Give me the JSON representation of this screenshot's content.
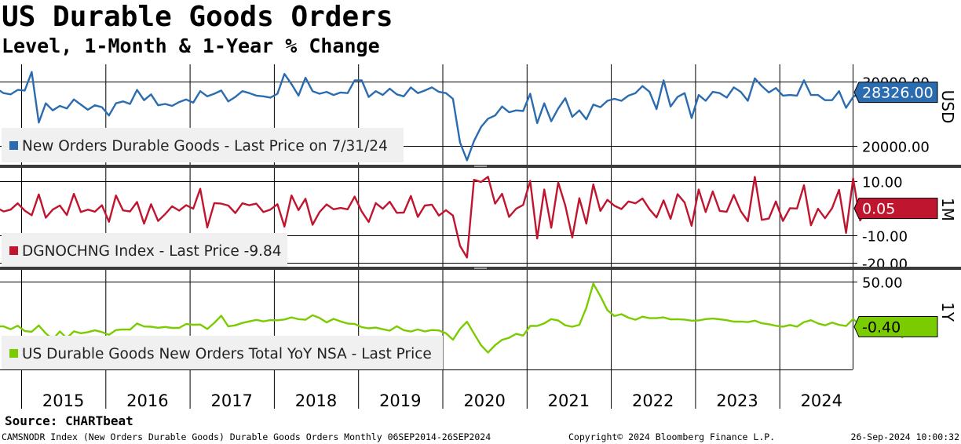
{
  "title": "US Durable Goods Orders",
  "subtitle": "Level, 1-Month & 1-Year % Change",
  "source": "Source: CHARTbeat",
  "footer": {
    "left": "CAMSNODR Index (New Orders Durable Goods) Durable Goods Orders  Monthly 06SEP2014-26SEP2024",
    "middle": "Copyright© 2024 Bloomberg Finance L.P.",
    "right": "26-Sep-2024 10:00:32"
  },
  "colors": {
    "level": "#2b6cb0",
    "mom": "#c0152f",
    "yoy": "#7acc00",
    "legend_bg": "#f0f0f0"
  },
  "chart_data": [
    {
      "type": "line",
      "panel": "level",
      "legend": "New Orders Durable Goods - Last Price on 7/31/24",
      "axis_side_label": "USD",
      "ticks": [
        20000,
        30000
      ],
      "tick_labels": [
        "20000.00",
        "30000.00"
      ],
      "last_value_label": "28326.00",
      "last_value": 28326,
      "ylim": [
        17000,
        32700
      ],
      "start": "2014-09",
      "values": [
        28900,
        28200,
        28000,
        28700,
        28600,
        31500,
        23600,
        26600,
        25500,
        26200,
        25800,
        27200,
        26400,
        25600,
        26300,
        26000,
        24700,
        26600,
        26900,
        26500,
        28700,
        27100,
        28000,
        26300,
        26500,
        26200,
        26800,
        27200,
        26700,
        28500,
        27700,
        28100,
        28600,
        26900,
        27600,
        28500,
        28200,
        27800,
        27700,
        27500,
        28100,
        31200,
        29600,
        27800,
        30600,
        28500,
        28100,
        28400,
        27900,
        28300,
        28200,
        30200,
        30200,
        27600,
        28500,
        27900,
        28900,
        28000,
        27700,
        29100,
        28200,
        28600,
        29100,
        28400,
        28200,
        27300,
        20500,
        17700,
        20700,
        22900,
        24200,
        24700,
        26100,
        25200,
        25500,
        25400,
        28100,
        23500,
        26600,
        23800,
        25800,
        27400,
        24500,
        25500,
        24100,
        26400,
        26000,
        27000,
        27300,
        27000,
        27800,
        28200,
        29300,
        28400,
        25700,
        30200,
        26100,
        27600,
        28200,
        24300,
        27900,
        27000,
        28400,
        28200,
        27500,
        29100,
        28400,
        27000,
        30500,
        29300,
        28300,
        29000,
        27800,
        27900,
        27800,
        30200,
        27900,
        27900,
        27100,
        27100,
        28500,
        25900,
        27600,
        28326
      ]
    },
    {
      "type": "line",
      "panel": "mom",
      "legend": "DGNOCHNG Index - Last Price -9.84",
      "axis_side_label": "1M",
      "ticks": [
        10,
        -10,
        -20
      ],
      "tick_labels": [
        "10.00",
        "-10.00",
        "-20.00"
      ],
      "last_value_label": "0.05",
      "last_value": 0.05,
      "ylim": [
        -21.5,
        15
      ],
      "start": "2014-09",
      "values": [
        0.3,
        -1.1,
        -0.4,
        1.9,
        -0.8,
        -2.5,
        5.2,
        -3.4,
        -0.4,
        1.1,
        -2.4,
        5.4,
        -1.3,
        -0.4,
        -1.2,
        1.2,
        -4.9,
        4.8,
        -0.7,
        -1.1,
        2.4,
        -5.6,
        1.6,
        -4.6,
        -2.1,
        0.8,
        -0.8,
        1.2,
        -0.1,
        7.3,
        -7.0,
        2.0,
        1.8,
        1.1,
        -1.7,
        1.9,
        1.2,
        1.8,
        -1.3,
        -0.4,
        1.6,
        -6.7,
        4.8,
        -0.6,
        3.6,
        -6.0,
        -1.3,
        1.5,
        -0.3,
        0.2,
        -0.3,
        4.4,
        -1.1,
        -5.0,
        2.0,
        -0.1,
        2.5,
        -1.6,
        -1.5,
        4.6,
        -3.1,
        1.1,
        1.4,
        -2.6,
        -0.6,
        -2.6,
        -13.8,
        -18.1,
        10.6,
        9.8,
        11.7,
        1.8,
        5.4,
        -3.1,
        -0.1,
        1.3,
        10.2,
        -11.1,
        7.0,
        -7.1,
        9.6,
        1.1,
        -10.7,
        3.8,
        -5.6,
        8.9,
        -0.9,
        3.2,
        1.0,
        -0.2,
        2.6,
        1.9,
        3.7,
        -0.3,
        -3.3,
        3.0,
        -3.8,
        5.3,
        2.2,
        -6.4,
        7.0,
        -1.3,
        6.3,
        -0.9,
        -1.2,
        5.0,
        -1.0,
        -4.7,
        11.7,
        -4.2,
        -3.7,
        2.6,
        -4.6,
        0.1,
        0.0,
        8.6,
        -6.2,
        -0.1,
        -3.6,
        0.1,
        6.9,
        -9.0,
        11.1,
        -4.4,
        0.05
      ]
    },
    {
      "type": "line",
      "panel": "yoy",
      "legend": "US Durable Goods New Orders Total YoY NSA - Last Price",
      "axis_side_label": "1Y",
      "ticks": [
        50
      ],
      "tick_labels": [
        "50.00"
      ],
      "last_value_label": "-0.40",
      "last_value": -0.4,
      "ylim": [
        -48,
        63
      ],
      "start": "2014-09",
      "values": [
        0.0,
        0.0,
        -3.2,
        0.8,
        -5.2,
        -6.0,
        1.0,
        -7.7,
        -14.5,
        -5.6,
        -13.0,
        -5.5,
        -7.6,
        -6.4,
        -4.4,
        -6.3,
        -9.4,
        -4.1,
        -3.3,
        -3.6,
        3.2,
        -0.1,
        -0.4,
        -1.5,
        -0.6,
        -1.7,
        -1.7,
        2.7,
        1.8,
        2.1,
        -2.9,
        3.9,
        11.9,
        0.0,
        1.2,
        3.8,
        5.6,
        7.2,
        5.6,
        7.0,
        6.8,
        7.7,
        10.0,
        8.0,
        7.4,
        12.4,
        9.4,
        4.4,
        8.4,
        5.5,
        3.2,
        2.8,
        -0.9,
        -2.1,
        -1.3,
        -3.2,
        -4.7,
        0.2,
        -4.2,
        -5.7,
        -3.4,
        -5.6,
        -4.0,
        -4.5,
        -7.6,
        -14.9,
        -2.8,
        5.2,
        -8.0,
        -21.0,
        -29.1,
        -20.9,
        -15.0,
        -12.7,
        -8.3,
        -10.2,
        0.5,
        0.5,
        3.4,
        8.1,
        6.5,
        1.2,
        -0.4,
        1.7,
        20.8,
        47.6,
        33.6,
        18.2,
        11.5,
        13.6,
        9.7,
        7.4,
        10.8,
        9.2,
        9.2,
        10.0,
        7.8,
        8.0,
        7.6,
        6.4,
        6.6,
        8.1,
        8.7,
        7.9,
        6.9,
        5.3,
        5.4,
        4.8,
        6.4,
        3.5,
        2.4,
        0.7,
        -0.3,
        1.6,
        -0.3,
        4.8,
        6.9,
        3.3,
        1.2,
        4.3,
        1.7,
        0.4,
        8.2,
        1.6,
        -1.5,
        1.2,
        -4.5,
        -1.1,
        -4.8,
        -12.2,
        -0.4,
        -0.4
      ]
    },
    {
      "type": "axis",
      "panel": "time-axis",
      "categories": [
        "2015",
        "2016",
        "2017",
        "2018",
        "2019",
        "2020",
        "2021",
        "2022",
        "2023",
        "2024"
      ]
    }
  ]
}
